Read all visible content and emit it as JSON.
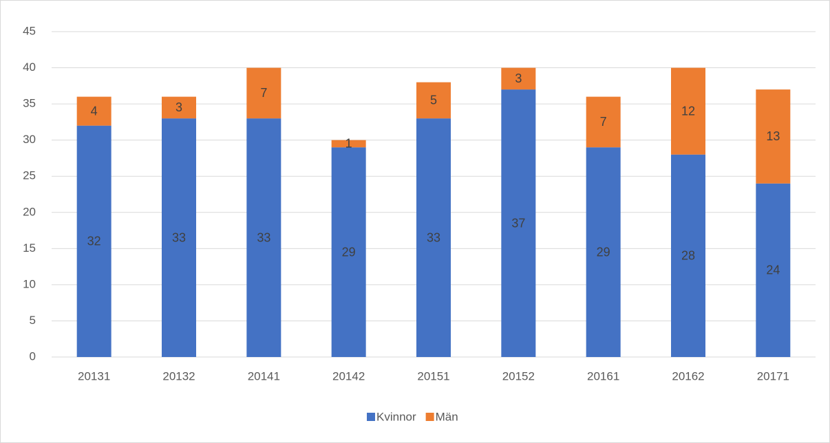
{
  "chart_data": {
    "type": "bar",
    "stacked": true,
    "categories": [
      "20131",
      "20132",
      "20141",
      "20142",
      "20151",
      "20152",
      "20161",
      "20162",
      "20171"
    ],
    "series": [
      {
        "name": "Kvinnor",
        "color": "#4472c4",
        "values": [
          32,
          33,
          33,
          29,
          33,
          37,
          29,
          28,
          24
        ]
      },
      {
        "name": "Män",
        "color": "#ed7d31",
        "values": [
          4,
          3,
          7,
          1,
          5,
          3,
          7,
          12,
          13
        ]
      }
    ],
    "ylim": [
      0,
      45
    ],
    "yticks": [
      0,
      5,
      10,
      15,
      20,
      25,
      30,
      35,
      40,
      45
    ],
    "grid": true,
    "legend": "bottom"
  }
}
